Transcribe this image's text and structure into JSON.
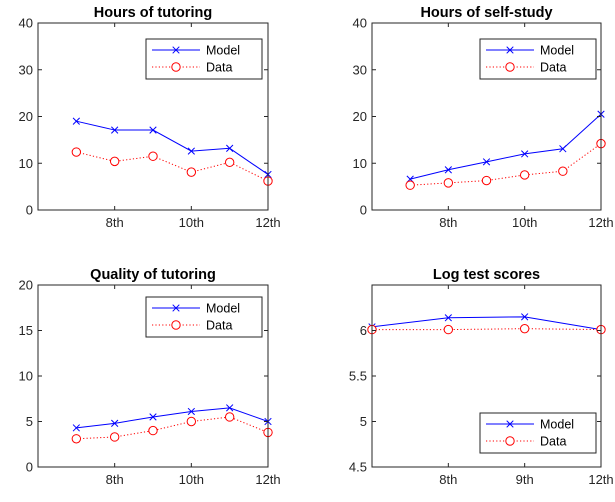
{
  "chart_data": [
    {
      "id": "hours_tutoring",
      "type": "line",
      "title": "Hours of tutoring",
      "xlabel": "",
      "ylabel": "",
      "x": [
        7,
        8,
        9,
        10,
        11,
        12
      ],
      "xlim": [
        6,
        12
      ],
      "ylim": [
        0,
        40
      ],
      "xticks": [
        8,
        10,
        12
      ],
      "xticklabels": [
        "8th",
        "10th",
        "12th"
      ],
      "yticks": [
        0,
        10,
        20,
        30,
        40
      ],
      "yticklabels": [
        "0",
        "10",
        "20",
        "30",
        "40"
      ],
      "legend_position": "top-right",
      "series": [
        {
          "name": "Model",
          "marker": "x",
          "line": "solid",
          "color": "#0000ff",
          "values": [
            19.0,
            17.1,
            17.1,
            12.6,
            13.2,
            7.6
          ]
        },
        {
          "name": "Data",
          "marker": "o",
          "line": "dotted",
          "color": "#ff0000",
          "values": [
            12.4,
            10.4,
            11.5,
            8.1,
            10.2,
            6.2
          ]
        }
      ]
    },
    {
      "id": "hours_self_study",
      "type": "line",
      "title": "Hours of self-study",
      "xlabel": "",
      "ylabel": "",
      "x": [
        7,
        8,
        9,
        10,
        11,
        12
      ],
      "xlim": [
        6,
        12
      ],
      "ylim": [
        0,
        40
      ],
      "xticks": [
        8,
        10,
        12
      ],
      "xticklabels": [
        "8th",
        "10th",
        "12th"
      ],
      "yticks": [
        0,
        10,
        20,
        30,
        40
      ],
      "yticklabels": [
        "0",
        "10",
        "20",
        "30",
        "40"
      ],
      "legend_position": "top-right",
      "series": [
        {
          "name": "Model",
          "marker": "x",
          "line": "solid",
          "color": "#0000ff",
          "values": [
            6.6,
            8.6,
            10.3,
            12.0,
            13.1,
            20.5
          ]
        },
        {
          "name": "Data",
          "marker": "o",
          "line": "dotted",
          "color": "#ff0000",
          "values": [
            5.3,
            5.8,
            6.3,
            7.5,
            8.3,
            14.2
          ]
        }
      ]
    },
    {
      "id": "quality_tutoring",
      "type": "line",
      "title": "Quality of tutoring",
      "xlabel": "",
      "ylabel": "",
      "x": [
        7,
        8,
        9,
        10,
        11,
        12
      ],
      "xlim": [
        6,
        12
      ],
      "ylim": [
        0,
        20
      ],
      "xticks": [
        8,
        10,
        12
      ],
      "xticklabels": [
        "8th",
        "10th",
        "12th"
      ],
      "yticks": [
        0,
        5,
        10,
        15,
        20
      ],
      "yticklabels": [
        "0",
        "5",
        "10",
        "15",
        "20"
      ],
      "legend_position": "top-right",
      "series": [
        {
          "name": "Model",
          "marker": "x",
          "line": "solid",
          "color": "#0000ff",
          "values": [
            4.3,
            4.8,
            5.5,
            6.1,
            6.5,
            5.0
          ]
        },
        {
          "name": "Data",
          "marker": "o",
          "line": "dotted",
          "color": "#ff0000",
          "values": [
            3.1,
            3.3,
            4.0,
            5.0,
            5.5,
            3.8
          ]
        }
      ]
    },
    {
      "id": "log_test_scores",
      "type": "line",
      "title": "Log test scores",
      "xlabel": "",
      "ylabel": "",
      "x": [
        7,
        8,
        9,
        10
      ],
      "xlim": [
        7,
        10
      ],
      "ylim": [
        4.5,
        6.5
      ],
      "xticks": [
        8,
        9,
        10
      ],
      "xticklabels": [
        "8th",
        "9th",
        "12th"
      ],
      "yticks": [
        4.5,
        5,
        5.5,
        6
      ],
      "yticklabels": [
        "4.5",
        "5",
        "5.5",
        "6"
      ],
      "legend_position": "bottom-right",
      "series": [
        {
          "name": "Model",
          "marker": "x",
          "line": "solid",
          "color": "#0000ff",
          "values": [
            6.04,
            6.14,
            6.15,
            6.01
          ]
        },
        {
          "name": "Data",
          "marker": "o",
          "line": "dotted",
          "color": "#ff0000",
          "values": [
            6.01,
            6.01,
            6.02,
            6.01
          ]
        }
      ]
    }
  ]
}
